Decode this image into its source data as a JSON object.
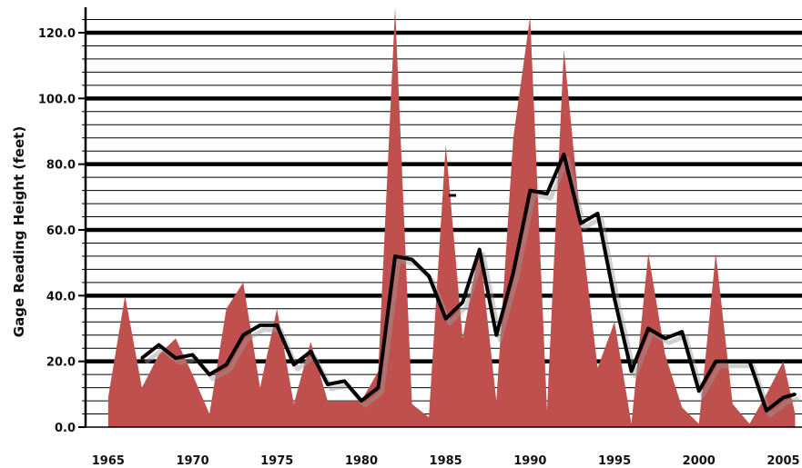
{
  "chart_data": {
    "type": "area",
    "title": "",
    "xlabel": "",
    "ylabel": "Gage Reading Height (feet)",
    "xlim": [
      1964.2,
      2006
    ],
    "ylim": [
      0,
      120
    ],
    "x_ticks": [
      "1965",
      "1970",
      "1975",
      "1980",
      "1985",
      "1990",
      "1995",
      "2000",
      "2005"
    ],
    "y_ticks": [
      "0.0",
      "20.0",
      "40.0",
      "60.0",
      "80.0",
      "100.0",
      "120.0"
    ],
    "grid": true,
    "legend": "none",
    "colors": {
      "area": "#c0504d",
      "line": "#000000",
      "grid": "#000000"
    },
    "series": [
      {
        "type": "area",
        "x": [
          1965.0,
          1966.0,
          1967.0,
          1968.0,
          1969.0,
          1970.0,
          1971.0,
          1972.0,
          1973.0,
          1974.0,
          1975.0,
          1976.0,
          1977.0,
          1978.0,
          1979.0,
          1980.0,
          1981.0,
          1982.0,
          1983.0,
          1984.0,
          1985.0,
          1986.0,
          1987.0,
          1988.0,
          1989.0,
          1990.0,
          1991.0,
          1992.0,
          1993.0,
          1994.0,
          1995.0,
          1996.0,
          1997.0,
          1998.0,
          1999.0,
          2000.0,
          2001.0,
          2002.0,
          2003.0,
          2004.0,
          2005.0,
          2005.7
        ],
        "values": [
          9,
          40,
          12,
          22,
          27,
          16,
          4,
          36,
          44,
          12,
          36,
          7,
          26,
          8,
          8,
          8,
          17,
          128,
          7,
          3,
          86,
          27,
          55,
          8,
          88,
          125,
          5,
          115,
          62,
          18,
          32,
          1,
          53,
          22,
          6,
          1,
          53,
          7,
          1,
          10,
          20,
          4
        ]
      },
      {
        "type": "line",
        "x": [
          1967.0,
          1968.0,
          1969.0,
          1970.0,
          1971.0,
          1972.0,
          1973.0,
          1974.0,
          1975.0,
          1976.0,
          1977.0,
          1978.0,
          1979.0,
          1980.0,
          1981.0,
          1982.0,
          1983.0,
          1984.0,
          1985.0,
          1986.0,
          1987.0,
          1988.0,
          1989.0,
          1990.0,
          1991.0,
          1992.0,
          1993.0,
          1994.0,
          1995.0,
          1996.0,
          1997.0,
          1998.0,
          1999.0,
          2000.0,
          2001.0,
          2002.0,
          2003.0,
          2004.0,
          2005.0,
          2005.7
        ],
        "values": [
          21,
          25,
          21,
          22,
          16,
          19,
          28,
          31,
          31,
          19,
          23,
          13,
          14,
          8,
          12,
          52,
          51,
          46,
          33,
          38,
          54,
          28,
          47,
          72,
          71,
          83,
          62,
          65,
          39,
          17,
          30,
          27,
          29,
          11,
          20,
          20,
          20,
          5,
          9,
          10
        ]
      }
    ],
    "annotation": {
      "x": 1985.4,
      "y": 70.5
    }
  }
}
